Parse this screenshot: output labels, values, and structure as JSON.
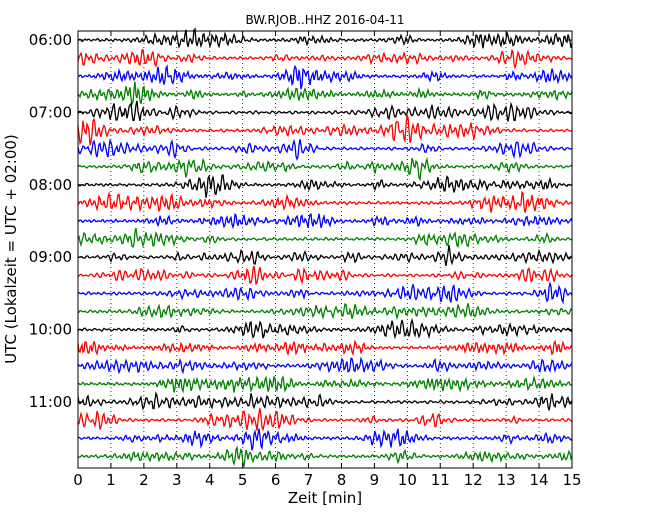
{
  "chart_data": {
    "type": "line",
    "title": "BW.RJOB..HHZ 2016-04-11",
    "xlabel": "Zeit  [min]",
    "ylabel": "UTC (Lokalzeit = UTC + 02:00)",
    "xlim": [
      0,
      15
    ],
    "x_ticks": [
      0,
      1,
      2,
      3,
      4,
      5,
      6,
      7,
      8,
      9,
      10,
      11,
      12,
      13,
      14,
      15
    ],
    "y_tick_labels": [
      "06:00",
      "07:00",
      "08:00",
      "09:00",
      "10:00",
      "11:00"
    ],
    "trace_interval_min": 15,
    "traces_per_hour": 4,
    "start_hour": 6,
    "n_traces": 24,
    "trace_colors": [
      "#000000",
      "#ff0000",
      "#0000ff",
      "#008000"
    ],
    "grid": "vertical dotted lines at each minute"
  }
}
